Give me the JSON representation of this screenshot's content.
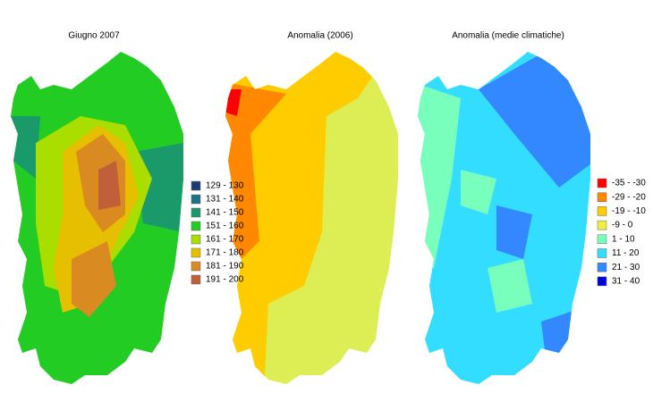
{
  "maps": [
    {
      "title": "Giugno 2007",
      "legend": [
        {
          "label": "129 - 130",
          "color": "#1a3a78"
        },
        {
          "label": "131 - 140",
          "color": "#1f6e8a"
        },
        {
          "label": "141 - 150",
          "color": "#1a9a6a"
        },
        {
          "label": "151 - 160",
          "color": "#22cc22"
        },
        {
          "label": "161 - 170",
          "color": "#aadd00"
        },
        {
          "label": "171 - 180",
          "color": "#e6c000"
        },
        {
          "label": "181 - 190",
          "color": "#d98a20"
        },
        {
          "label": "191 - 200",
          "color": "#c0603a"
        }
      ]
    },
    {
      "title": "Anomalia (2006)"
    },
    {
      "title": "Anomalia (medie climatiche)",
      "legend": [
        {
          "label": "-35 - -30",
          "color": "#ff0000"
        },
        {
          "label": "-29 - -20",
          "color": "#ff8800"
        },
        {
          "label": "-19 - -10",
          "color": "#ffcc00"
        },
        {
          "label": "-9 - 0",
          "color": "#eeee44"
        },
        {
          "label": "1 - 10",
          "color": "#77ffbb"
        },
        {
          "label": "11 - 20",
          "color": "#33ddff"
        },
        {
          "label": "21 - 30",
          "color": "#3388ff"
        },
        {
          "label": "31 - 40",
          "color": "#0000dd"
        }
      ]
    }
  ]
}
